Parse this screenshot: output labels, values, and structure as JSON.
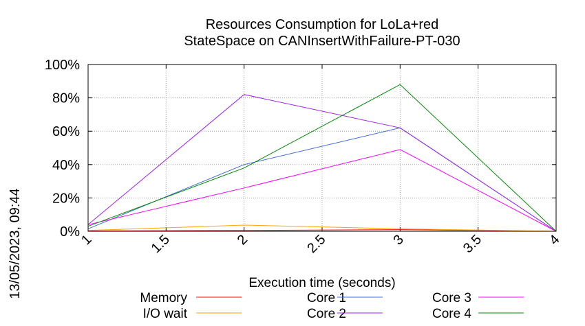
{
  "chart_data": {
    "type": "line",
    "title": [
      "Resources Consumption for LoLa+red",
      "StateSpace on CANInsertWithFailure-PT-030"
    ],
    "xlabel": "Execution time (seconds)",
    "ylabel": "",
    "xlim": [
      1,
      4
    ],
    "ylim": [
      0,
      100
    ],
    "x_ticks": [
      1,
      1.5,
      2,
      2.5,
      3,
      3.5,
      4
    ],
    "x_tick_labels": [
      "1",
      "1.5",
      "2",
      "2.5",
      "3",
      "3.5",
      "4"
    ],
    "y_ticks": [
      0,
      20,
      40,
      60,
      80,
      100
    ],
    "y_tick_labels": [
      "0%",
      "20%",
      "40%",
      "60%",
      "80%",
      "100%"
    ],
    "grid": true,
    "legend_position": "bottom",
    "x": [
      1,
      2,
      3,
      4
    ],
    "series": [
      {
        "name": "Memory",
        "color": "#ff0000",
        "values": [
          0.2,
          0.5,
          1.0,
          0
        ]
      },
      {
        "name": "I/O wait",
        "color": "#ffa500",
        "values": [
          0.5,
          3.7,
          1.5,
          0
        ]
      },
      {
        "name": "Core 1",
        "color": "#4169e1",
        "values": [
          1.5,
          40,
          62,
          0
        ]
      },
      {
        "name": "Core 2",
        "color": "#a020f0",
        "values": [
          4,
          82,
          62,
          0
        ]
      },
      {
        "name": "Core 3",
        "color": "#ff00ff",
        "values": [
          4,
          26,
          49,
          0
        ]
      },
      {
        "name": "Core 4",
        "color": "#008b00",
        "values": [
          3,
          38,
          88,
          0
        ]
      }
    ]
  },
  "timestamp": "13/05/2023, 09:44"
}
